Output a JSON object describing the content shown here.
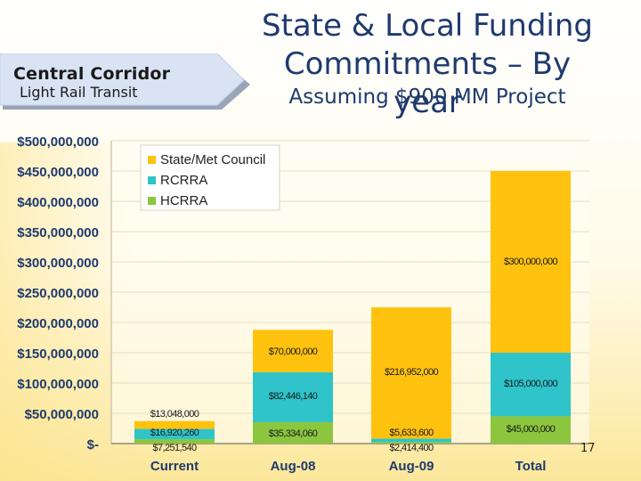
{
  "header": {
    "banner_title": "Central Corridor",
    "banner_subtitle": "Light Rail Transit",
    "title_line1": "State & Local Funding",
    "title_line2": "Commitments – By year",
    "subtitle": "Assuming $900 MM Project"
  },
  "footer": {
    "page_number": "17"
  },
  "colors": {
    "state": "#ffc20e",
    "rcrra": "#2ec4c9",
    "hcrra": "#8cc63f",
    "axis_text": "#1f3a6e",
    "banner": "#d6e1f2"
  },
  "chart_data": {
    "type": "bar",
    "stacked": true,
    "categories": [
      "Current",
      "Aug-08",
      "Aug-09",
      "Total"
    ],
    "series": [
      {
        "name": "HCRRA",
        "color": "#8cc63f",
        "values": [
          7251540,
          35334060,
          2414400,
          45000000
        ],
        "labels": [
          "$7,251,540",
          "$35,334,060",
          "$2,414,400",
          "$45,000,000"
        ]
      },
      {
        "name": "RCRRA",
        "color": "#2ec4c9",
        "values": [
          16920260,
          82446140,
          5633600,
          105000000
        ],
        "labels": [
          "$16,920,260",
          "$82,446,140",
          "$5,633,600",
          "$105,000,000"
        ]
      },
      {
        "name": "State/Met Council",
        "color": "#ffc20e",
        "values": [
          13048000,
          70000000,
          216952000,
          300000000
        ],
        "labels": [
          "$13,048,000",
          "$70,000,000",
          "$216,952,000",
          "$300,000,000"
        ]
      }
    ],
    "legend_order": [
      "State/Met Council",
      "RCRRA",
      "HCRRA"
    ],
    "legend_position": "top-left",
    "ylim": [
      0,
      500000000
    ],
    "yticks": [
      0,
      50000000,
      100000000,
      150000000,
      200000000,
      250000000,
      300000000,
      350000000,
      400000000,
      450000000,
      500000000
    ],
    "ytick_labels": [
      "$-",
      "$50,000,000",
      "$100,000,000",
      "$150,000,000",
      "$200,000,000",
      "$250,000,000",
      "$300,000,000",
      "$350,000,000",
      "$400,000,000",
      "$450,000,000",
      "$500,000,000"
    ],
    "grid": true
  }
}
